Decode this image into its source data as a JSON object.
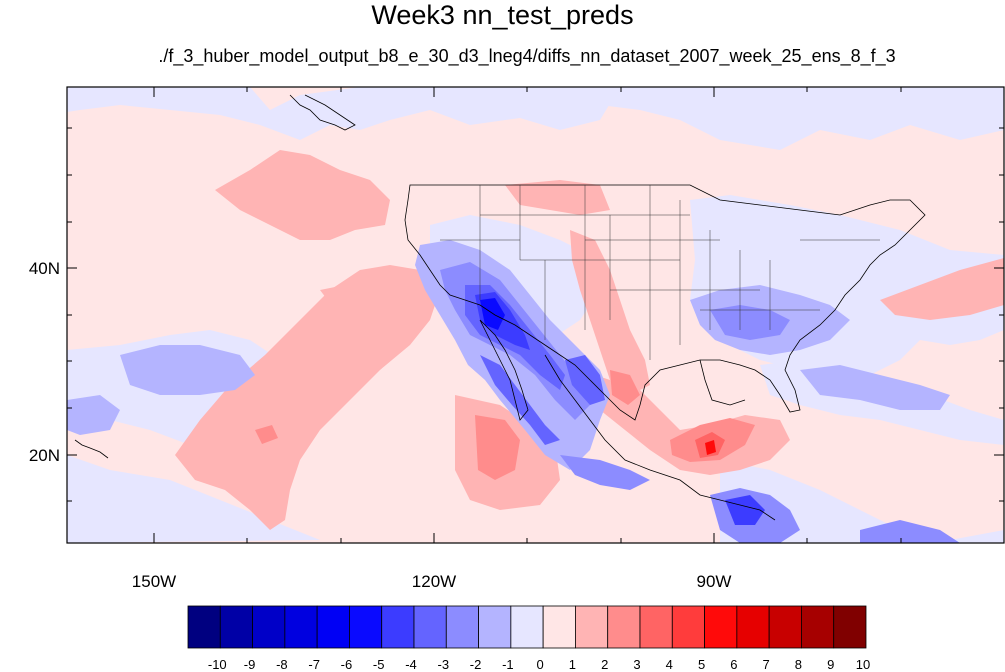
{
  "title": "Week3 nn_test_preds",
  "subtitle": "./f_3_huber_model_output_b8_e_30_d3_lneg4/diffs_nn_dataset_2007_week_25_ens_8_f_3",
  "axes": {
    "lon_labels": [
      "150W",
      "120W",
      "90W"
    ],
    "lat_labels": [
      "40N",
      "20N"
    ],
    "lon_range": [
      -159,
      -60
    ],
    "lat_range": [
      11,
      59
    ]
  },
  "colorbar": {
    "labels": [
      "-10",
      "-9",
      "-8",
      "-7",
      "-6",
      "-5",
      "-4",
      "-3",
      "-2",
      "-1",
      "0",
      "1",
      "2",
      "3",
      "4",
      "5",
      "6",
      "7",
      "8",
      "9",
      "10"
    ],
    "colors": [
      "#000080",
      "#0000a6",
      "#0000c8",
      "#0000e0",
      "#0000f5",
      "#0a0aff",
      "#3c3cff",
      "#6464ff",
      "#8c8cff",
      "#b4b4ff",
      "#e6e6ff",
      "#ffe6e6",
      "#ffb4b4",
      "#ff8c8c",
      "#ff6464",
      "#ff3c3c",
      "#ff0a0a",
      "#e60000",
      "#c80000",
      "#a60000",
      "#800000"
    ]
  },
  "field_colors": {
    "background": "#ffe6e6",
    "light_blue": "#e6e6ff",
    "blue1": "#b4b4ff",
    "blue2": "#8c8cff",
    "blue3": "#6464ff",
    "blue4": "#3c3cff",
    "blue5": "#0a0aff",
    "pink1": "#ffb4b4",
    "pink2": "#ff8c8c",
    "red1": "#ff6464",
    "red2": "#ff0a0a"
  }
}
